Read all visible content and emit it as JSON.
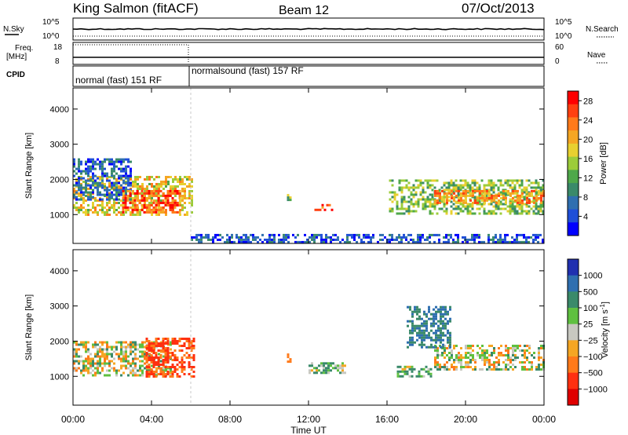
{
  "header": {
    "station": "King Salmon (fitACF)",
    "beam": "Beam 12",
    "date": "07/Oct/2013"
  },
  "nsky_panel": {
    "left_label": "N.Sky",
    "right_label": "N.Search",
    "left_ticks": [
      "10^5",
      "10^0"
    ],
    "right_ticks": [
      "10^5",
      "10^0"
    ]
  },
  "freq_panel": {
    "left_label_top": "Freq.",
    "left_label_bottom": "[MHz]",
    "right_label": "Nave",
    "left_ticks": [
      "18",
      "8"
    ],
    "right_ticks": [
      "60",
      "0"
    ]
  },
  "cpid": {
    "label": "CPID",
    "modes": [
      {
        "name": "normal (fast) 151 RF",
        "start_hour": 0,
        "end_hour": 6
      },
      {
        "name": "normalsound (fast) 157 RF",
        "start_hour": 6,
        "end_hour": 24
      }
    ]
  },
  "chart_data": [
    {
      "type": "heatmap",
      "title": "",
      "ylabel": "Slant Range [km]",
      "xlabel": "",
      "xlim": [
        0,
        24
      ],
      "ylim": [
        180,
        4600
      ],
      "yticks": [
        "1000",
        "2000",
        "3000",
        "4000"
      ],
      "colorbar": {
        "label": "Power [dB]",
        "ticks": [
          "4",
          "8",
          "12",
          "16",
          "20",
          "24",
          "28"
        ],
        "range": [
          0,
          30
        ],
        "colors": [
          "#0000ff",
          "#1f4fd8",
          "#2f6fb0",
          "#3a8a6a",
          "#4fa84a",
          "#9ccc3a",
          "#e8d030",
          "#f5a623",
          "#ff7a1a",
          "#ff4010",
          "#ff0000"
        ]
      },
      "echo_regions": [
        {
          "t0": 0.0,
          "t1": 6.1,
          "r0": 1000,
          "r1": 2100,
          "power": 18
        },
        {
          "t0": 0.0,
          "t1": 3.0,
          "r0": 1400,
          "r1": 2600,
          "power": 6
        },
        {
          "t0": 2.5,
          "t1": 5.5,
          "r0": 1050,
          "r1": 1700,
          "power": 25
        },
        {
          "t0": 10.9,
          "t1": 11.1,
          "r0": 1400,
          "r1": 1650,
          "power": 12
        },
        {
          "t0": 12.3,
          "t1": 13.2,
          "r0": 1100,
          "r1": 1300,
          "power": 26
        },
        {
          "t0": 16.1,
          "t1": 24.0,
          "r0": 1000,
          "r1": 2000,
          "power": 14
        },
        {
          "t0": 18.4,
          "t1": 24.0,
          "r0": 1300,
          "r1": 1700,
          "power": 22
        },
        {
          "t0": 6.0,
          "t1": 24.0,
          "r0": 200,
          "r1": 450,
          "power": 5
        }
      ]
    },
    {
      "type": "heatmap",
      "title": "",
      "ylabel": "Slant Range [km]",
      "xlabel": "Time UT",
      "xlim": [
        0,
        24
      ],
      "ylim": [
        180,
        4600
      ],
      "yticks": [
        "1000",
        "2000",
        "3000",
        "4000"
      ],
      "xticks": [
        "00:00",
        "04:00",
        "08:00",
        "12:00",
        "16:00",
        "20:00",
        "00:00"
      ],
      "colorbar": {
        "label": "Velocity [m s^-1]",
        "ticks": [
          "1000",
          "500",
          "100",
          "25",
          "−25",
          "−100",
          "−500",
          "−1000"
        ],
        "colors": [
          "#2030b0",
          "#2f6fb0",
          "#3a8a6a",
          "#5fc040",
          "#c8c8c0",
          "#f5a623",
          "#ff7a1a",
          "#ff3010",
          "#e00000"
        ]
      },
      "echo_regions": [
        {
          "t0": 0.0,
          "t1": 5.0,
          "r0": 1000,
          "r1": 2000,
          "velocity": 0
        },
        {
          "t0": 3.7,
          "t1": 6.2,
          "r0": 1000,
          "r1": 2100,
          "velocity": -500
        },
        {
          "t0": 10.9,
          "t1": 11.1,
          "r0": 1400,
          "r1": 1650,
          "velocity": -300
        },
        {
          "t0": 12.0,
          "t1": 13.8,
          "r0": 1100,
          "r1": 1400,
          "velocity": 100
        },
        {
          "t0": 16.5,
          "t1": 18.2,
          "r0": 1000,
          "r1": 1300,
          "velocity": 100
        },
        {
          "t0": 18.4,
          "t1": 24.0,
          "r0": 1200,
          "r1": 1900,
          "velocity": 0
        },
        {
          "t0": 17.0,
          "t1": 19.2,
          "r0": 1800,
          "r1": 3000,
          "velocity": 500
        }
      ]
    }
  ]
}
